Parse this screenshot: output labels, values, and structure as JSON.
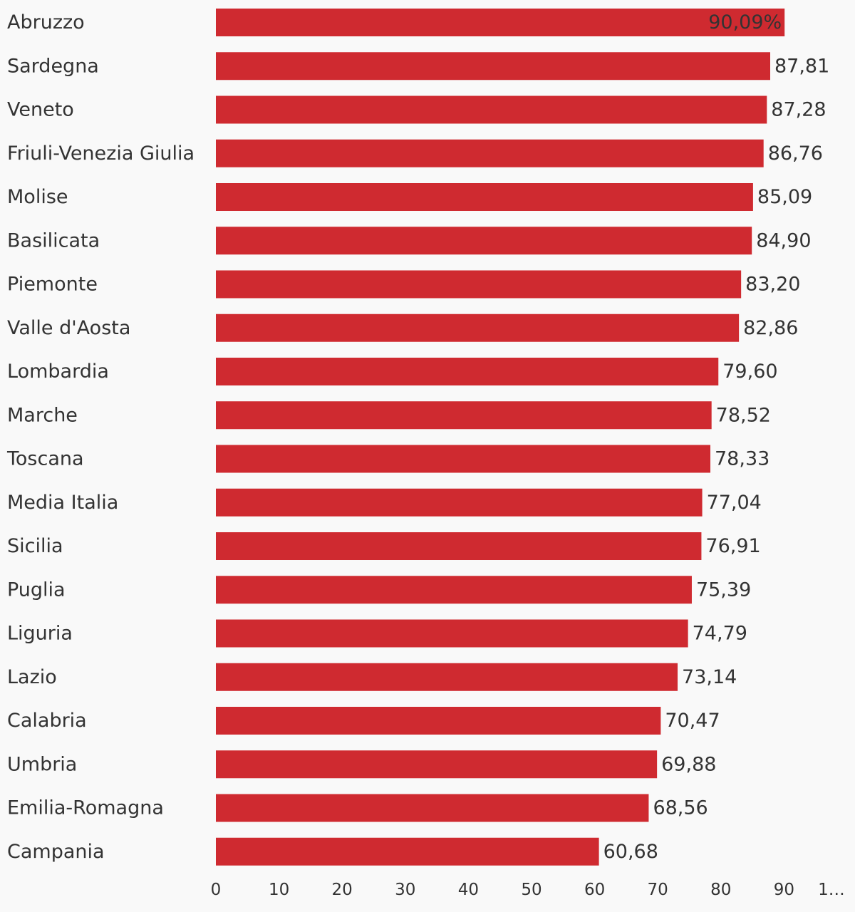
{
  "chart_data": {
    "type": "bar",
    "orientation": "horizontal",
    "categories": [
      "Abruzzo",
      "Sardegna",
      "Veneto",
      "Friuli-Venezia Giulia",
      "Molise",
      "Basilicata",
      "Piemonte",
      "Valle d'Aosta",
      "Lombardia",
      "Marche",
      "Toscana",
      "Media Italia",
      "Sicilia",
      "Puglia",
      "Liguria",
      "Lazio",
      "Calabria",
      "Umbria",
      "Emilia-Romagna",
      "Campania"
    ],
    "values": [
      90.09,
      87.81,
      87.28,
      86.76,
      85.09,
      84.9,
      83.2,
      82.86,
      79.6,
      78.52,
      78.33,
      77.04,
      76.91,
      75.39,
      74.79,
      73.14,
      70.47,
      69.88,
      68.56,
      60.68
    ],
    "value_labels": [
      "90,09%",
      "87,81",
      "87,28",
      "86,76",
      "85,09",
      "84,90",
      "83,20",
      "82,86",
      "79,60",
      "78,52",
      "78,33",
      "77,04",
      "76,91",
      "75,39",
      "74,79",
      "73,14",
      "70,47",
      "69,88",
      "68,56",
      "60,68"
    ],
    "xticks": [
      "0",
      "10",
      "20",
      "30",
      "40",
      "50",
      "60",
      "70",
      "80",
      "90",
      "1…"
    ],
    "xlim": [
      0,
      100
    ],
    "grid": false,
    "bar_color": "#cf2a30",
    "title": "",
    "xlabel": "",
    "ylabel": ""
  }
}
